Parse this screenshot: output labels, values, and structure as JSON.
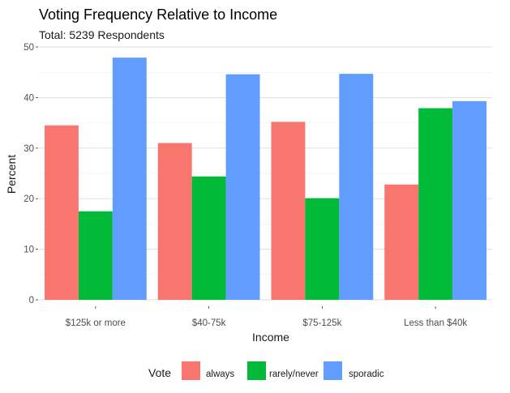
{
  "chart_data": {
    "type": "bar",
    "title": "Voting Frequency Relative to Income",
    "subtitle": "Total: 5239 Respondents",
    "xlabel": "Income",
    "ylabel": "Percent",
    "ylim": [
      0,
      50
    ],
    "yticks": [
      "0",
      "10",
      "20",
      "30",
      "40",
      "50"
    ],
    "categories": [
      "$125k or more",
      "$40-75k",
      "$75-125k",
      "Less than $40k"
    ],
    "series": [
      {
        "name": "always",
        "color": "#F8766D",
        "values": [
          34.5,
          31.0,
          35.2,
          22.8
        ]
      },
      {
        "name": "rarely/never",
        "color": "#00BA38",
        "values": [
          17.5,
          24.4,
          20.1,
          37.9
        ]
      },
      {
        "name": "sporadic",
        "color": "#619CFF",
        "values": [
          47.9,
          44.6,
          44.7,
          39.3
        ]
      }
    ],
    "legend_title": "Vote",
    "legend_position": "bottom",
    "grid": true
  }
}
